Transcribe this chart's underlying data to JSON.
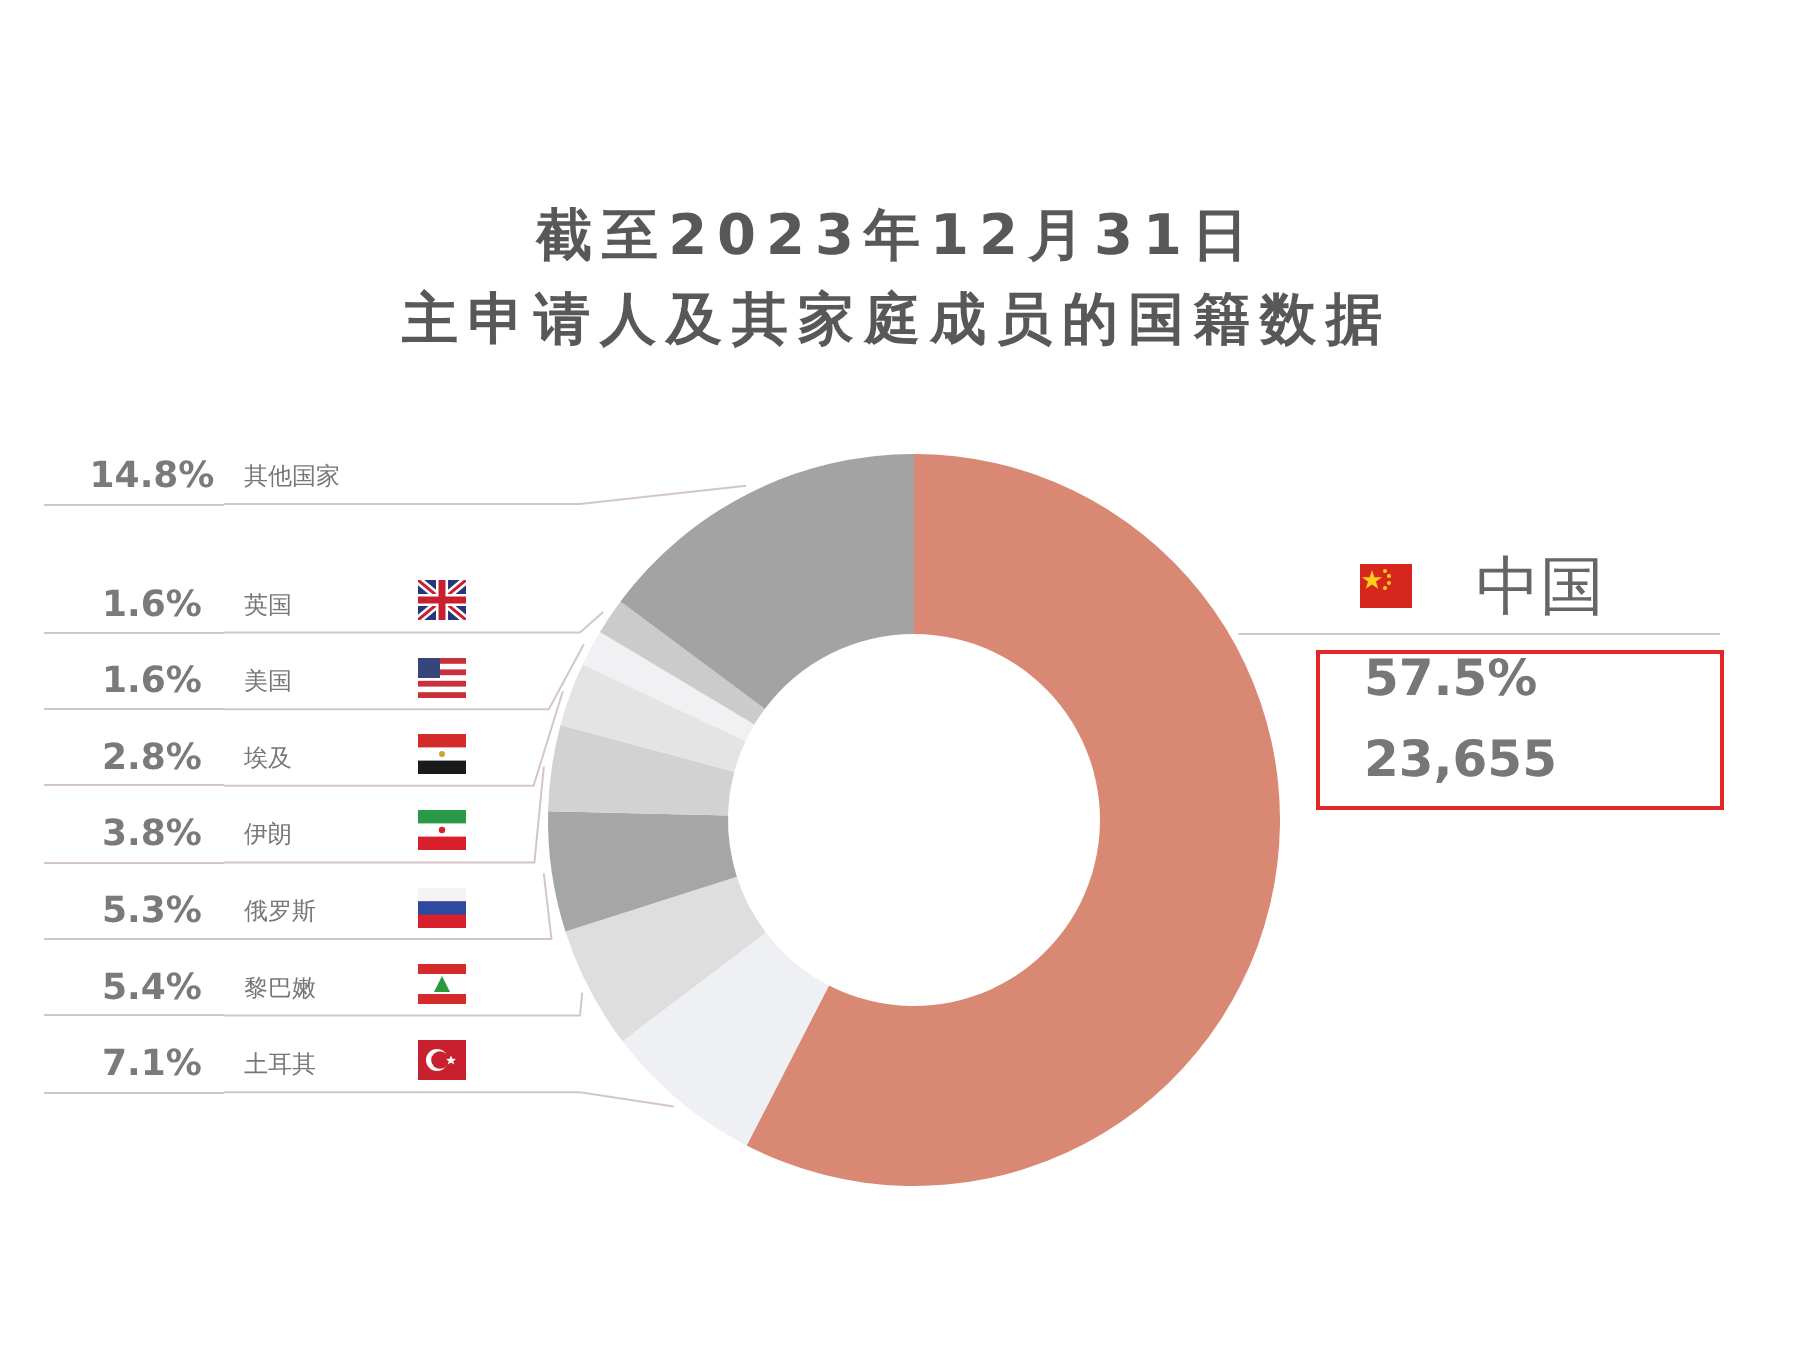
{
  "chart_data": {
    "type": "donut",
    "title": "截至2023年12月31日",
    "subtitle": "主申请人及其家庭成员的国籍数据",
    "categories": [
      "中国",
      "土耳其",
      "黎巴嫩",
      "俄罗斯",
      "伊朗",
      "埃及",
      "美国",
      "英国",
      "其他国家"
    ],
    "values": [
      57.5,
      7.1,
      5.4,
      5.3,
      3.8,
      2.8,
      1.6,
      1.6,
      14.8
    ],
    "colors": [
      "#d98973",
      "#eef0f3",
      "#dedede",
      "#a6a6a6",
      "#d2d2d2",
      "#e4e4e4",
      "#f1f1f3",
      "#cbcbcb",
      "#a3a3a3"
    ],
    "value_labels": [
      "57.5%",
      "7.1%",
      "5.4%",
      "5.3%",
      "3.8%",
      "2.8%",
      "1.6%",
      "1.6%",
      "14.8%"
    ],
    "annotations": [
      "23,655"
    ]
  }
}
